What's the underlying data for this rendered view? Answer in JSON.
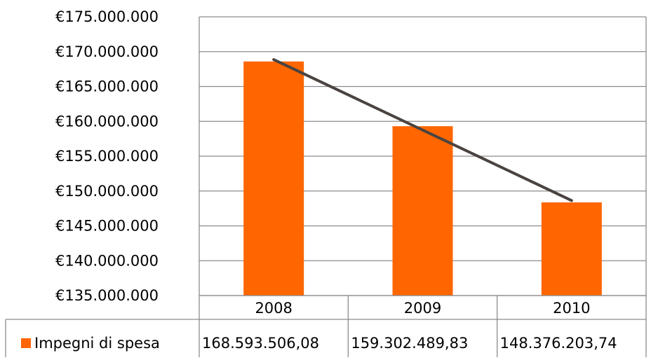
{
  "chart_data": {
    "type": "bar",
    "title": "",
    "xlabel": "",
    "ylabel": "",
    "categories": [
      "2008",
      "2009",
      "2010"
    ],
    "series": [
      {
        "name": "Impegni di spesa",
        "values": [
          168593506.08,
          159302489.83,
          148376203.74
        ],
        "color": "#FF6600"
      }
    ],
    "trendline": {
      "type": "linear",
      "color": "#4A4340",
      "values": [
        168860000,
        158750000,
        148640000
      ]
    },
    "ylim": [
      135000000,
      175000000
    ],
    "y_ticks": [
      135000000,
      140000000,
      145000000,
      150000000,
      155000000,
      160000000,
      165000000,
      170000000,
      175000000
    ],
    "y_tick_labels": [
      "€135.000.000",
      "€140.000.000",
      "€145.000.000",
      "€150.000.000",
      "€155.000.000",
      "€160.000.000",
      "€165.000.000",
      "€170.000.000",
      "€175.000.000"
    ],
    "grid": true,
    "data_table": {
      "series_label": "Impegni di spesa",
      "cells": [
        "168.593.506,08",
        "159.302.489,83",
        "148.376.203,74"
      ]
    }
  }
}
